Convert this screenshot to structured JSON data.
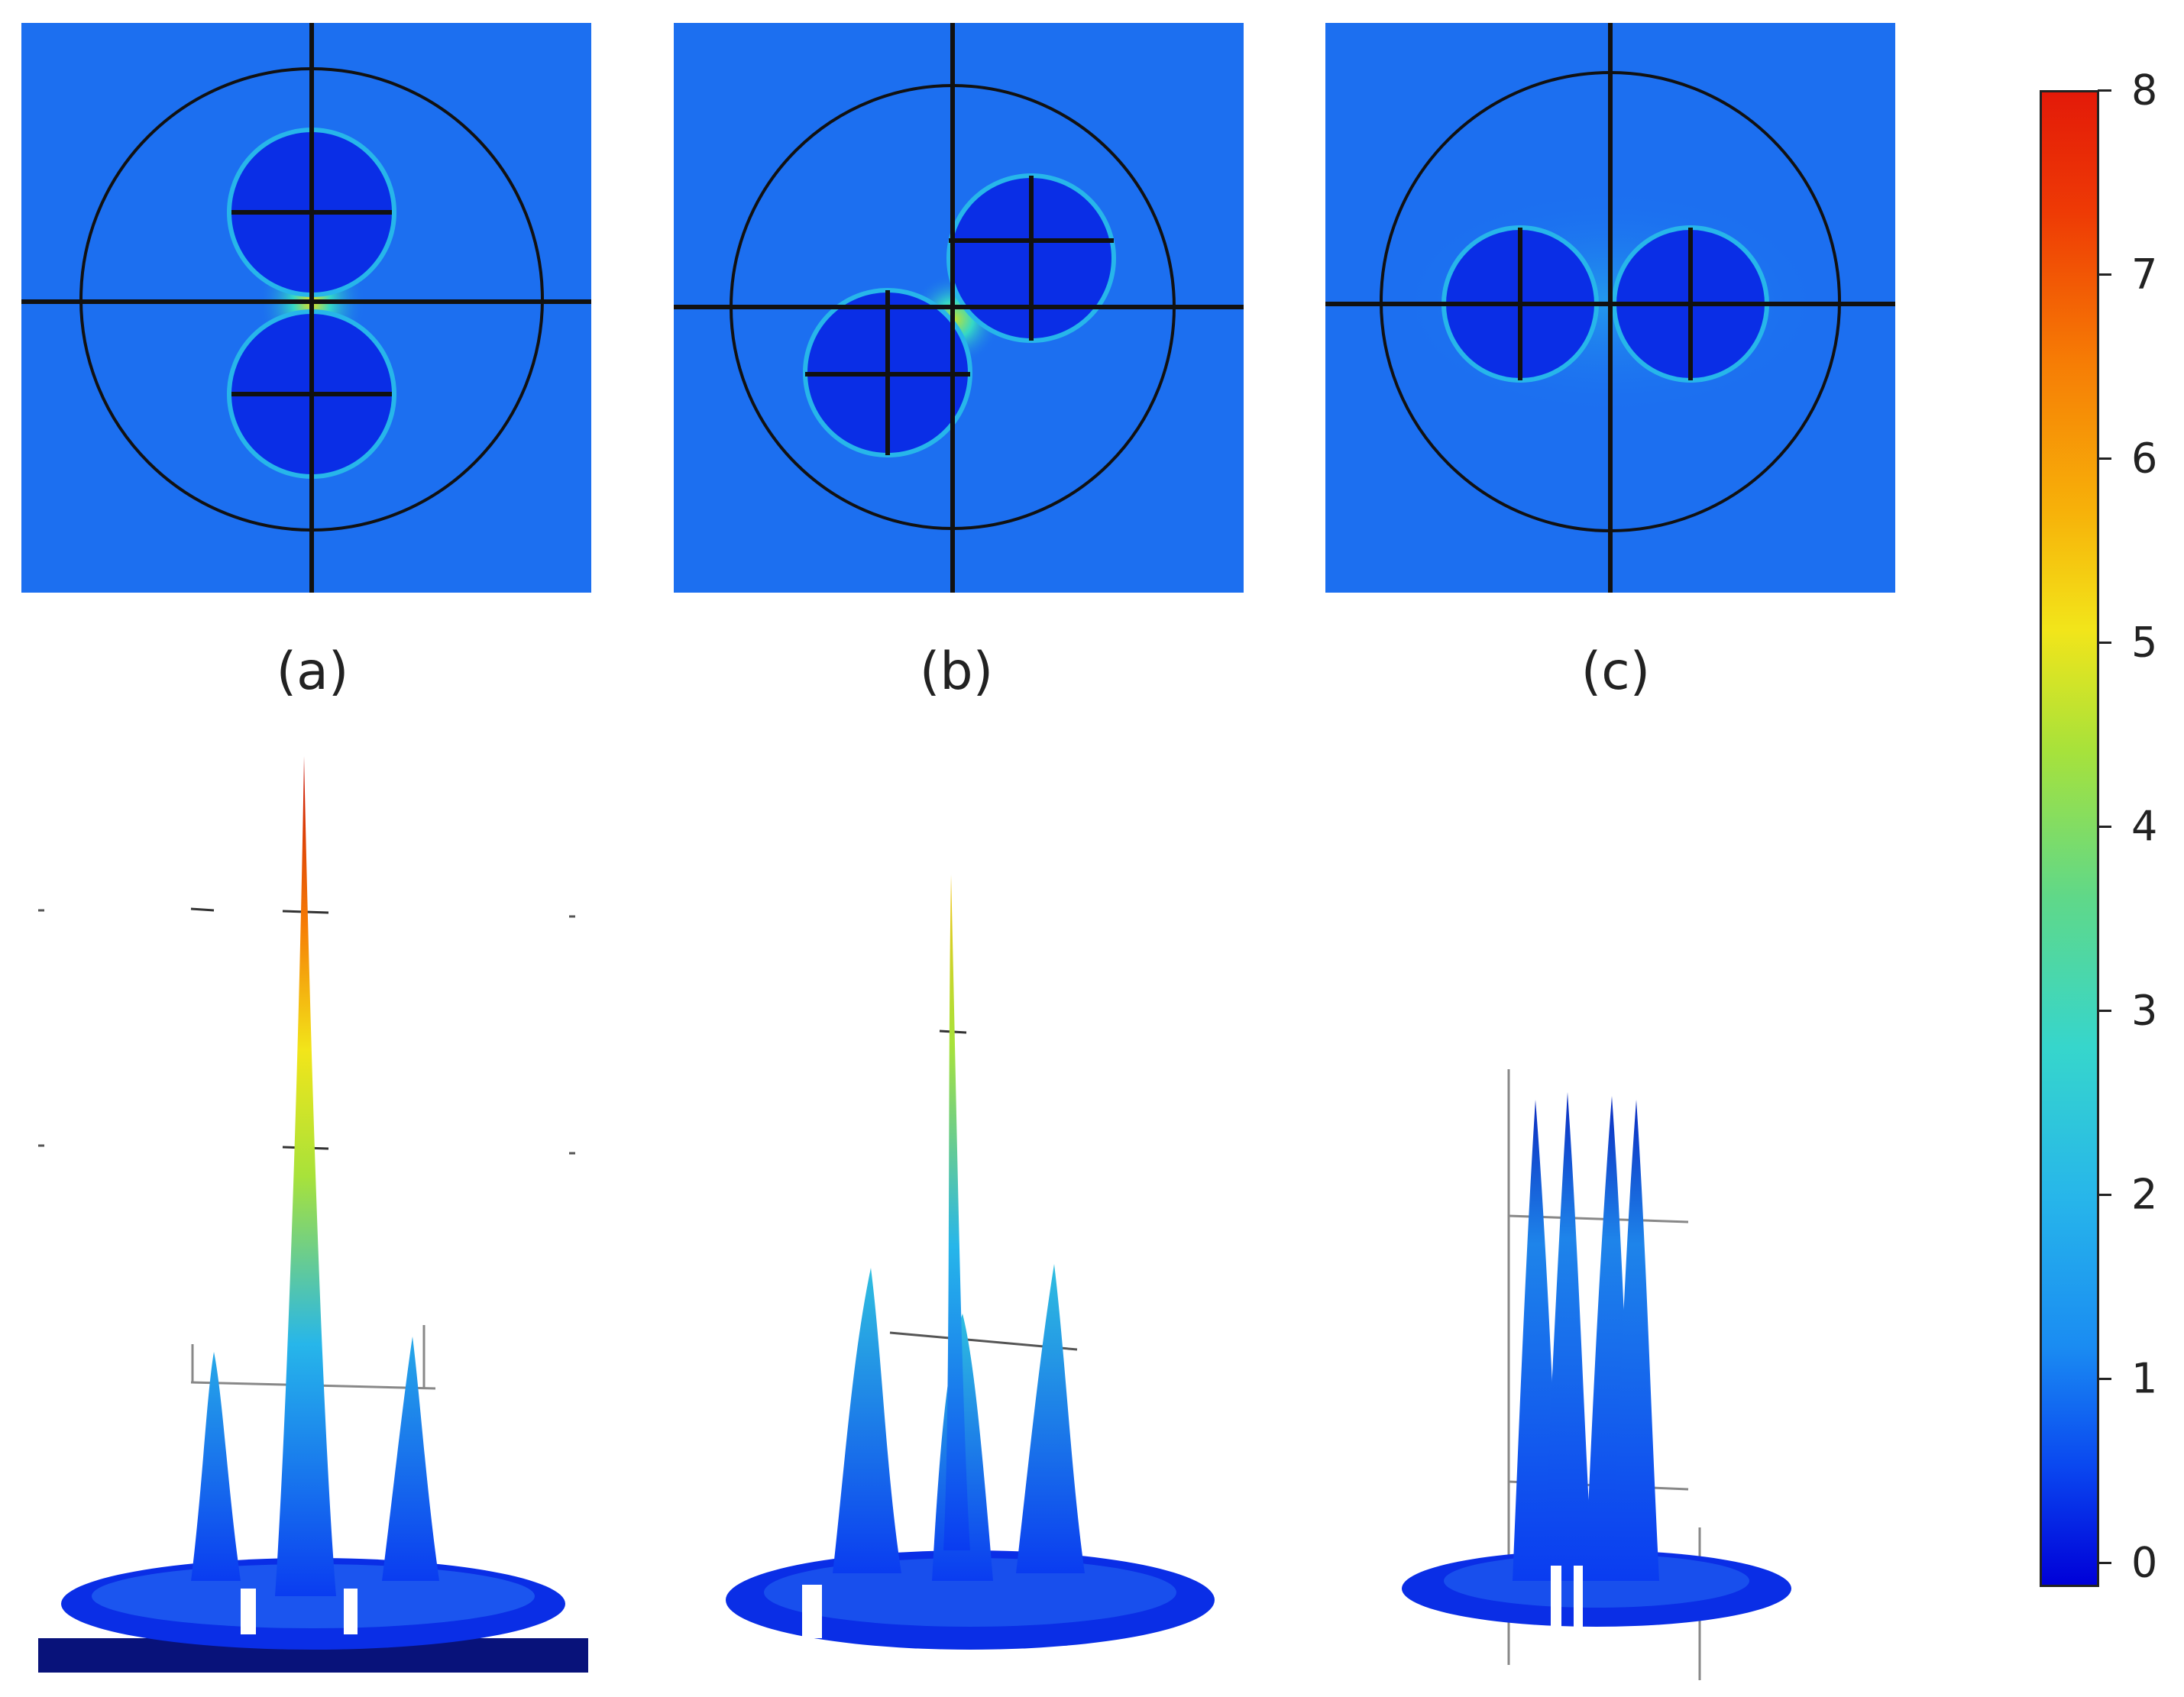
{
  "panels": [
    {
      "label": "(a)"
    },
    {
      "label": "(b)"
    },
    {
      "label": "(c)"
    }
  ],
  "colorbar": {
    "ticks": [
      "0",
      "1",
      "2",
      "3",
      "4",
      "5",
      "6",
      "7",
      "8"
    ],
    "colormap": [
      "#0000d8",
      "#1a8cf2",
      "#36d6cc",
      "#f2e51a",
      "#e31a08"
    ]
  },
  "colors": {
    "background_field": "#1c6ff0",
    "core": "#0a2ee6",
    "outline": "#111111"
  }
}
